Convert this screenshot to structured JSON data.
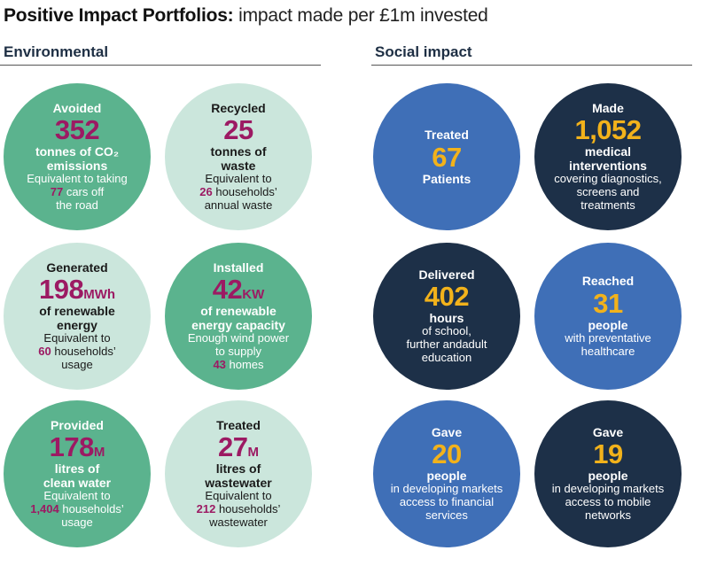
{
  "title": {
    "bold": "Positive Impact Portfolios:",
    "rest": " impact made per £1m invested"
  },
  "sections": {
    "environmental": "Environmental",
    "social": "Social impact"
  },
  "env": [
    {
      "verb": "Avoided",
      "num": "352",
      "unit": "",
      "bold1": "tonnes of CO₂",
      "bold2": "emissions",
      "d1": "Equivalent to taking",
      "hl": "77",
      "d2": " cars off",
      "d3": "the road"
    },
    {
      "verb": "Recycled",
      "num": "25",
      "unit": "",
      "bold1": "tonnes of",
      "bold2": "waste",
      "d1": "Equivalent to",
      "hl": "26",
      "d2": " households’",
      "d3": "annual waste"
    },
    {
      "verb": "Generated",
      "num": "198",
      "unit": "MWh",
      "bold1": "of renewable",
      "bold2": "energy",
      "d1": "Equivalent to",
      "hl": "60",
      "d2": " households’",
      "d3": "usage"
    },
    {
      "verb": "Installed",
      "num": "42",
      "unit": "KW",
      "bold1": "of renewable",
      "bold2": "energy capacity",
      "d1": "Enough wind power",
      "d1b": "to supply",
      "hl": "43",
      "d2": " homes"
    },
    {
      "verb": "Provided",
      "num": "178",
      "unit": "M",
      "bold1": "litres of",
      "bold2": "clean water",
      "d1": "Equivalent to",
      "hl": "1,404",
      "d2": " households’",
      "d3": "usage"
    },
    {
      "verb": "Treated",
      "num": "27",
      "unit": "M",
      "bold1": "litres of",
      "bold2": "wastewater",
      "d1": "Equivalent to",
      "hl": "212",
      "d2": " households’",
      "d3": "wastewater"
    }
  ],
  "soc": [
    {
      "verb": "Treated",
      "num": "67",
      "bold1": "Patients"
    },
    {
      "verb": "Made",
      "num": "1,052",
      "bold1": "medical",
      "bold2": "interventions",
      "d1": "covering diagnostics,",
      "d2": "screens and",
      "d3": "treatments"
    },
    {
      "verb": "Delivered",
      "num": "402",
      "bold1": "hours",
      "d1": "of school,",
      "d2": "further andadult",
      "d3": "education"
    },
    {
      "verb": "Reached",
      "num": "31",
      "bold1": "people",
      "d1": "with preventative",
      "d2": "healthcare"
    },
    {
      "verb": "Gave",
      "num": "20",
      "bold1": "people",
      "d1": "in developing markets",
      "d2": "access to financial",
      "d3": "services"
    },
    {
      "verb": "Gave",
      "num": "19",
      "bold1": "people",
      "d1": "in developing markets",
      "d2": "access to mobile",
      "d3": "networks"
    }
  ],
  "colors": {
    "env_dark": "#5bb38e",
    "env_light": "#cbe6dc",
    "soc_blue": "#3f6fb7",
    "soc_navy": "#1d3048",
    "env_number": "#9c1a63",
    "soc_number": "#f2b21b"
  }
}
